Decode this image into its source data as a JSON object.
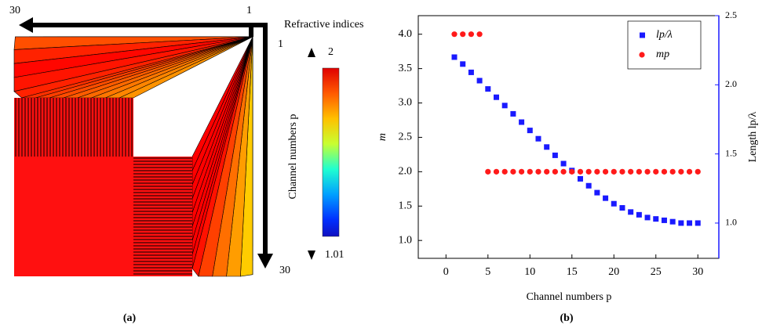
{
  "panel_a": {
    "arrow_top": {
      "start": "1",
      "end": "30"
    },
    "arrow_right": {
      "start": "1",
      "end": "30"
    },
    "axis_label": "Channel numbers p",
    "colorbar": {
      "title": "Refractive indices",
      "max": 2,
      "min": 1.01
    },
    "label": "(a)"
  },
  "chart_data": {
    "type": "scatter",
    "label": "(b)",
    "x_label": "Channel numbers p",
    "y_label": "m",
    "y2_label": "Length lp/λ",
    "x": [
      1,
      2,
      3,
      4,
      5,
      6,
      7,
      8,
      9,
      10,
      11,
      12,
      13,
      14,
      15,
      16,
      17,
      18,
      19,
      20,
      21,
      22,
      23,
      24,
      25,
      26,
      27,
      28,
      29,
      30
    ],
    "series": [
      {
        "name": "lp/λ",
        "color": "#1a1aff",
        "marker": "square",
        "axis": "y2",
        "values": [
          2.2,
          2.15,
          2.09,
          2.03,
          1.97,
          1.91,
          1.85,
          1.79,
          1.73,
          1.67,
          1.61,
          1.55,
          1.49,
          1.43,
          1.38,
          1.32,
          1.27,
          1.22,
          1.18,
          1.14,
          1.11,
          1.08,
          1.06,
          1.04,
          1.03,
          1.02,
          1.01,
          1.0,
          1.0,
          1.0
        ]
      },
      {
        "name": "mp",
        "color": "#ff1a1a",
        "marker": "circle",
        "values": [
          4,
          4,
          4,
          4,
          2,
          2,
          2,
          2,
          2,
          2,
          2,
          2,
          2,
          2,
          2,
          2,
          2,
          2,
          2,
          2,
          2,
          2,
          2,
          2,
          2,
          2,
          2,
          2,
          2,
          2
        ]
      }
    ],
    "xlim": [
      -3.3,
      32.5
    ],
    "xticks": [
      0,
      5,
      10,
      15,
      20,
      25,
      30
    ],
    "ylim": [
      0.74,
      4.27
    ],
    "yticks": [
      {
        "value": 1,
        "label": "1.0"
      },
      {
        "value": 1.5,
        "label": "1.5"
      },
      {
        "value": 2,
        "label": "2.0"
      },
      {
        "value": 2.5,
        "label": "2.5"
      },
      {
        "value": 3,
        "label": "3.0"
      },
      {
        "value": 3.5,
        "label": "3.5"
      },
      {
        "value": 4,
        "label": "4.0"
      }
    ],
    "y2lim": [
      0.745,
      2.5
    ],
    "y2ticks": [
      {
        "value": 1,
        "label": "1.0"
      },
      {
        "value": 1.5,
        "label": "1.5"
      },
      {
        "value": 2,
        "label": "2.0"
      },
      {
        "value": 2.5,
        "label": "2.5"
      }
    ],
    "y2_color": "#1a1aff",
    "legend": "top-right"
  }
}
